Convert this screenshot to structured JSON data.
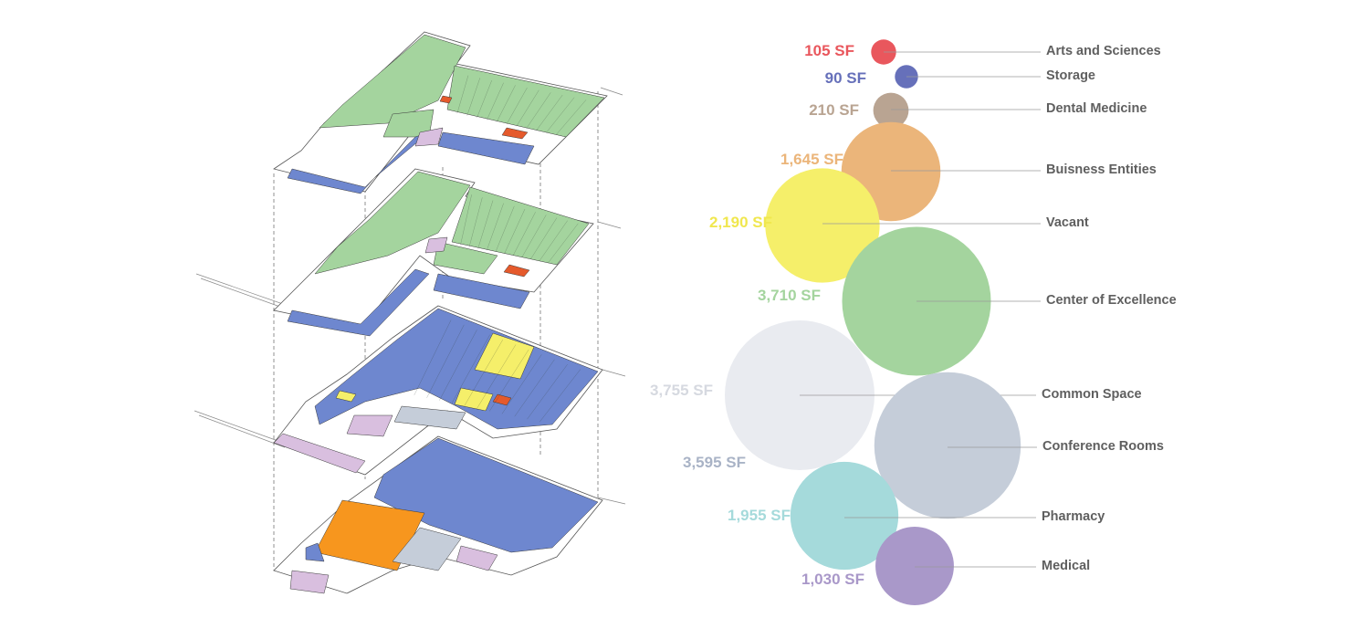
{
  "categories": [
    {
      "label": "Arts and Sciences",
      "area": "105 SF",
      "sf": 105,
      "color": "#e9575d"
    },
    {
      "label": "Storage",
      "area": "90 SF",
      "sf": 90,
      "color": "#6670ba"
    },
    {
      "label": "Dental Medicine",
      "area": "210 SF",
      "sf": 210,
      "color": "#b9a492"
    },
    {
      "label": "Buisness Entities",
      "area": "1,645 SF",
      "sf": 1645,
      "color": "#ebb57a"
    },
    {
      "label": "Vacant",
      "area": "2,190 SF",
      "sf": 2190,
      "color": "#f5ef6a"
    },
    {
      "label": "Center of Excellence",
      "area": "3,710 SF",
      "sf": 3710,
      "color": "#a4d49e"
    },
    {
      "label": "Common Space",
      "area": "3,755 SF",
      "sf": 3755,
      "color": "#e9ebf0"
    },
    {
      "label": "Conference Rooms",
      "area": "3,595 SF",
      "sf": 3595,
      "color": "#c5cdd9"
    },
    {
      "label": "Pharmacy",
      "area": "1,955 SF",
      "sf": 1955,
      "color": "#a5dadb"
    },
    {
      "label": "Medical",
      "area": "1,030 SF",
      "sf": 1030,
      "color": "#a998c9"
    }
  ],
  "value_colors": [
    "#e9575d",
    "#6670ba",
    "#b9a492",
    "#ebb57a",
    "#f0e74e",
    "#a4d49e",
    "#d6d9e0",
    "#a9b3c6",
    "#a5dadb",
    "#a998c9"
  ],
  "floor_colors": {
    "green": "#a4d49e",
    "blue": "#6e87cf",
    "yellow": "#f5ef6a",
    "orange": "#f7961e",
    "pink": "#d9bfdf",
    "red": "#e55a2c",
    "gray": "#c5cdd9"
  }
}
